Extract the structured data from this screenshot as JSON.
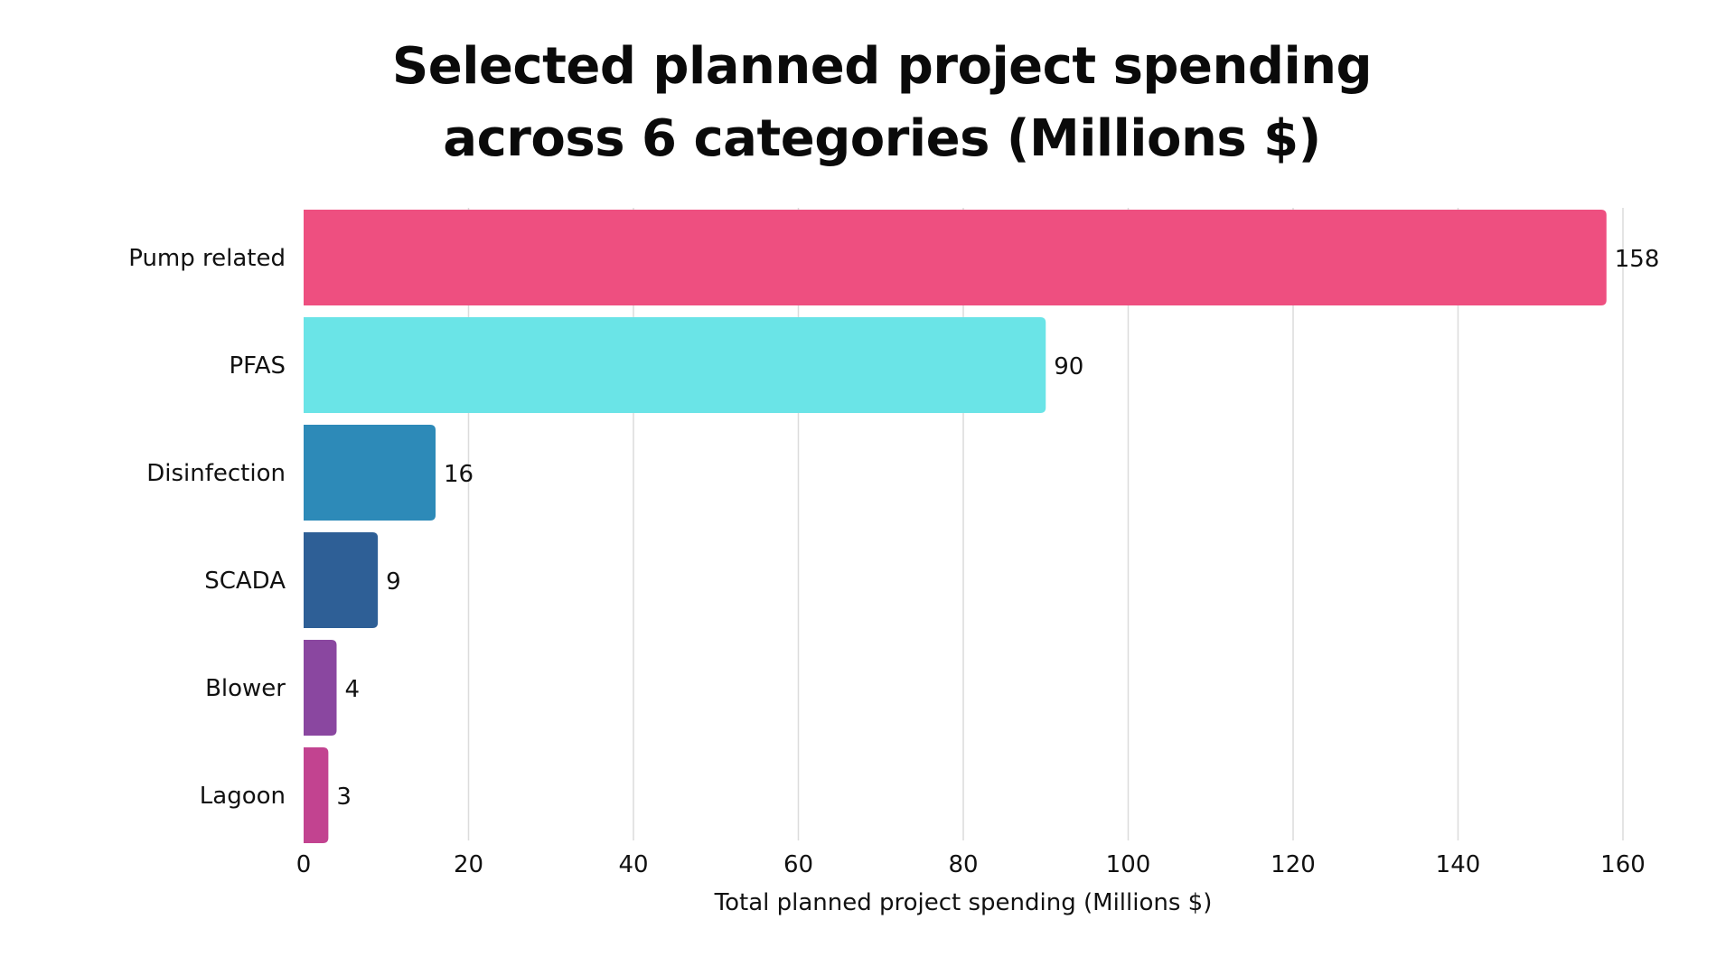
{
  "chart_data": {
    "type": "bar",
    "orientation": "horizontal",
    "title_lines": [
      "Selected planned project spending",
      "across 6 categories (Millions $)"
    ],
    "categories": [
      "Pump related",
      "PFAS",
      "Disinfection",
      "SCADA",
      "Blower",
      "Lagoon"
    ],
    "values": [
      158,
      90,
      16,
      9,
      4,
      3
    ],
    "colors": [
      "#ee4f80",
      "#6ae4e7",
      "#2d8ab8",
      "#2e5f96",
      "#8a47a0",
      "#c24390"
    ],
    "value_labels": [
      "158",
      "90",
      "16",
      "9",
      "4",
      "3"
    ],
    "xlabel": "Total planned project spending (Millions $)",
    "ylabel": "",
    "xlim": [
      0,
      160
    ],
    "x_ticks": [
      0,
      20,
      40,
      60,
      80,
      100,
      120,
      140,
      160
    ],
    "x_tick_labels": [
      "0",
      "20",
      "40",
      "60",
      "80",
      "100",
      "120",
      "140",
      "160"
    ],
    "grid": "vertical",
    "legend": "none"
  }
}
